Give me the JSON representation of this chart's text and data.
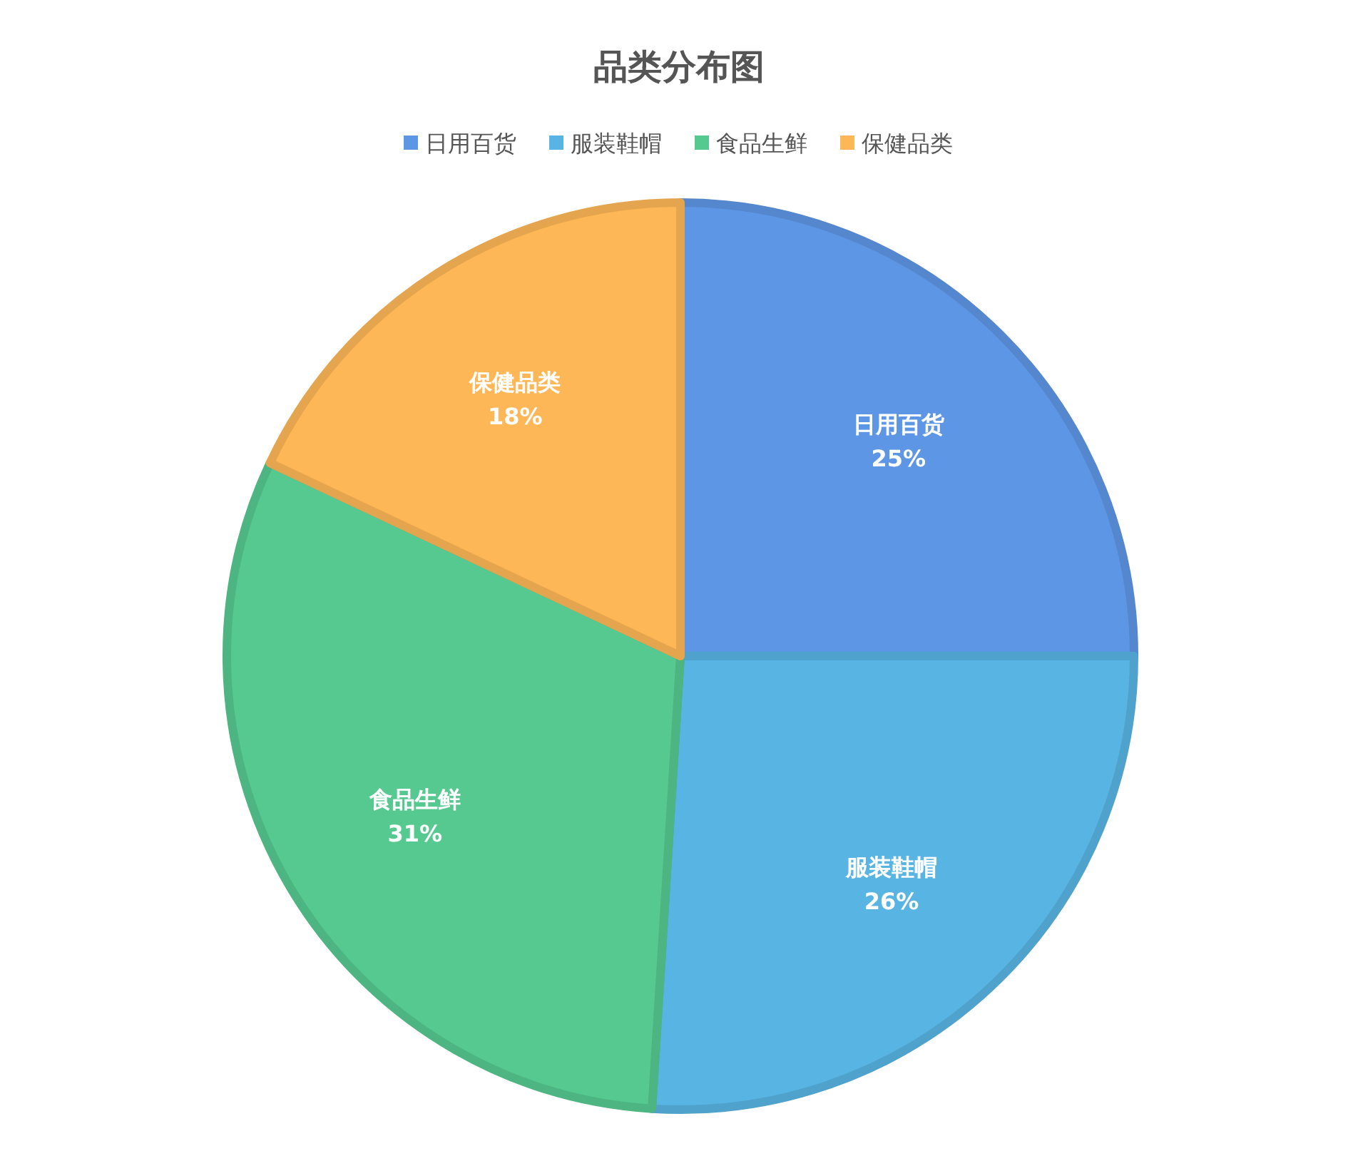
{
  "chart_data": {
    "type": "pie",
    "title": "品类分布图",
    "categories": [
      "日用百货",
      "服装鞋帽",
      "食品生鲜",
      "保健品类"
    ],
    "values": [
      25,
      26,
      31,
      18
    ],
    "value_labels": [
      "25%",
      "26%",
      "31%",
      "18%"
    ],
    "colors": [
      "#5e96e6",
      "#58b4e3",
      "#56c990",
      "#feb757"
    ],
    "legend": "top"
  }
}
